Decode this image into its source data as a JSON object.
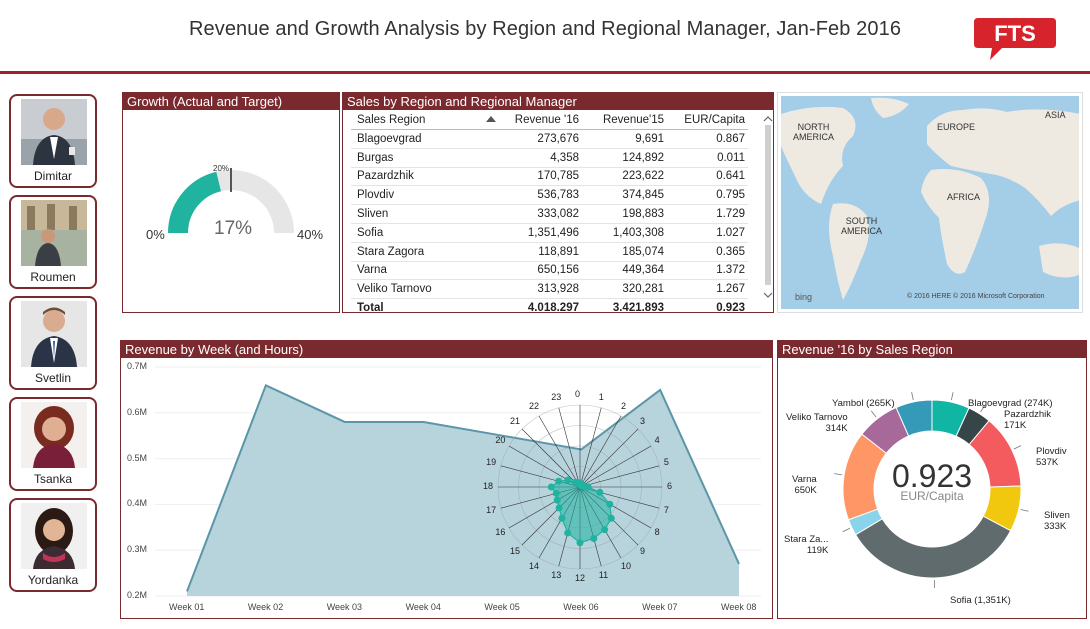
{
  "title": "Revenue and Growth Analysis by Region and Regional Manager, Jan-Feb 2016",
  "logo_text": "FTS",
  "managers": [
    {
      "name": "Dimitar"
    },
    {
      "name": "Roumen"
    },
    {
      "name": "Svetlin"
    },
    {
      "name": "Tsanka"
    },
    {
      "name": "Yordanka"
    }
  ],
  "growth": {
    "header": "Growth (Actual and Target)",
    "min_label": "0%",
    "max_label": "40%",
    "target_label": "20%",
    "value_label": "17%",
    "value": 0.17,
    "target": 0.2,
    "max": 0.4,
    "fill_color": "#1fb3a0",
    "track_color": "#e6e6e6"
  },
  "sales": {
    "header": "Sales by Region and Regional Manager",
    "columns": [
      "Sales Region",
      "Revenue '16",
      "Revenue'15",
      "EUR/Capita"
    ],
    "rows": [
      [
        "Blagoevgrad",
        "273,676",
        "9,691",
        "0.867"
      ],
      [
        "Burgas",
        "4,358",
        "124,892",
        "0.011"
      ],
      [
        "Pazardzhik",
        "170,785",
        "223,622",
        "0.641"
      ],
      [
        "Plovdiv",
        "536,783",
        "374,845",
        "0.795"
      ],
      [
        "Sliven",
        "333,082",
        "198,883",
        "1.729"
      ],
      [
        "Sofia",
        "1,351,496",
        "1,403,308",
        "1.027"
      ],
      [
        "Stara Zagora",
        "118,891",
        "185,074",
        "0.365"
      ],
      [
        "Varna",
        "650,156",
        "449,364",
        "1.372"
      ],
      [
        "Veliko Tarnovo",
        "313,928",
        "320,281",
        "1.267"
      ]
    ],
    "total": [
      "Total",
      "4.018.297",
      "3.421.893",
      "0.923"
    ]
  },
  "map": {
    "labels": {
      "north_america": "NORTH\nAMERICA",
      "europe": "EUROPE",
      "asia": "ASIA",
      "africa": "AFRICA",
      "south_america": "SOUTH\nAMERICA"
    },
    "brand": "bing",
    "copyright": "© 2016 HERE   © 2016 Microsoft Corporation"
  },
  "weekly": {
    "header": "Revenue by Week (and Hours)",
    "y_ticks": [
      "0.7M",
      "0.6M",
      "0.5M",
      "0.4M",
      "0.3M",
      "0.2M"
    ],
    "weeks": [
      "Week 01",
      "Week 02",
      "Week 03",
      "Week 04",
      "Week 05",
      "Week 06",
      "Week 07",
      "Week 08"
    ],
    "fill_color": "#b7d3dc",
    "line_color": "#5a96a8",
    "radar_color": "#1fb3a0"
  },
  "chart_data": [
    {
      "type": "area",
      "title": "Revenue by Week (and Hours)",
      "categories": [
        "Week 01",
        "Week 02",
        "Week 03",
        "Week 04",
        "Week 05",
        "Week 06",
        "Week 07",
        "Week 08"
      ],
      "values": [
        0.21,
        0.66,
        0.58,
        0.58,
        0.55,
        0.52,
        0.65,
        0.27
      ],
      "ylim": [
        0.2,
        0.7
      ],
      "yunit": "M"
    },
    {
      "type": "radar",
      "categories": [
        "0",
        "1",
        "2",
        "3",
        "4",
        "5",
        "6",
        "7",
        "8",
        "9",
        "10",
        "11",
        "12",
        "13",
        "14",
        "15",
        "16",
        "17",
        "18",
        "19",
        "20",
        "21",
        "22",
        "23"
      ],
      "values": [
        0.05,
        0.03,
        0.02,
        0.03,
        0.04,
        0.05,
        0.1,
        0.25,
        0.42,
        0.54,
        0.6,
        0.65,
        0.68,
        0.58,
        0.44,
        0.36,
        0.32,
        0.3,
        0.35,
        0.27,
        0.17,
        0.08,
        0.05,
        0.04
      ]
    },
    {
      "type": "pie",
      "title": "Revenue '16 by Sales Region",
      "center_value": "0.923",
      "center_label": "EUR/Capita",
      "slices": [
        {
          "name": "Blagoevgrad",
          "value": 274,
          "label": "Blagoevgrad (274K)",
          "color": "#11b5a3"
        },
        {
          "name": "Pazardzhik",
          "value": 171,
          "label": "Pazardzhik\n171K",
          "color": "#364548"
        },
        {
          "name": "Plovdiv",
          "value": 537,
          "label": "Plovdiv\n537K",
          "color": "#f35b5e"
        },
        {
          "name": "Sliven",
          "value": 333,
          "label": "Sliven\n333K",
          "color": "#f2c80f"
        },
        {
          "name": "Sofia",
          "value": 1351,
          "label": "Sofia (1,351K)",
          "color": "#5f6b6d"
        },
        {
          "name": "Stara Zagora",
          "value": 119,
          "label": "Stara Za...\n119K",
          "color": "#8ad4eb"
        },
        {
          "name": "Varna",
          "value": 650,
          "label": "Varna\n650K",
          "color": "#fe9666"
        },
        {
          "name": "Veliko Tarnovo",
          "value": 314,
          "label": "Veliko Tarnovo\n314K",
          "color": "#a66999"
        },
        {
          "name": "Yambol",
          "value": 265,
          "label": "Yambol (265K)",
          "color": "#3599b8"
        }
      ]
    }
  ],
  "donut_header": "Revenue '16 by Sales Region"
}
